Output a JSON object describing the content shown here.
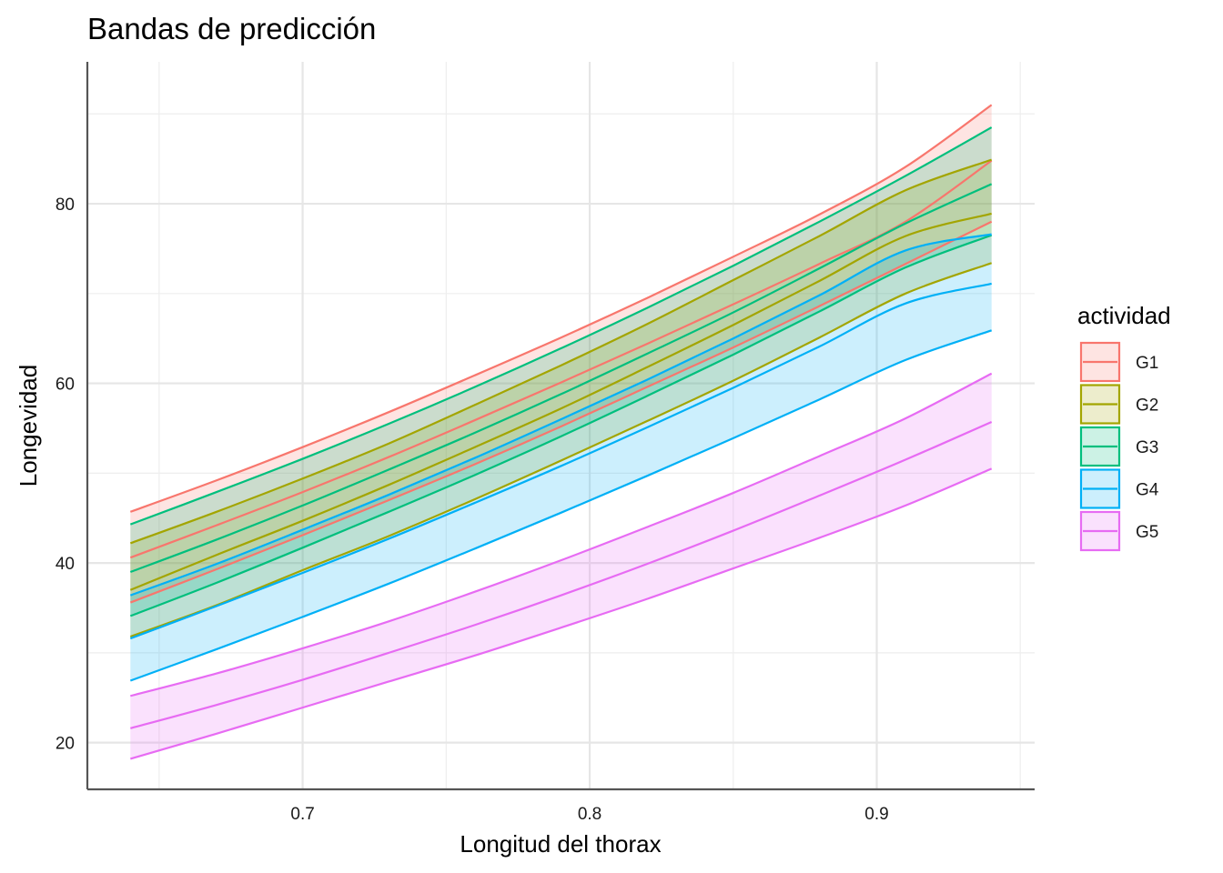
{
  "chart_data": {
    "type": "line",
    "title": "Bandas de predicción",
    "xlabel": "Longitud del thorax",
    "ylabel": "Longevidad",
    "xlim": [
      0.625,
      0.955
    ],
    "ylim": [
      14.8,
      95.8
    ],
    "x_ticks": [
      0.7,
      0.8,
      0.9
    ],
    "y_ticks": [
      20,
      40,
      60,
      80
    ],
    "x_minor": [
      0.65,
      0.75,
      0.85,
      0.95
    ],
    "y_minor": [
      30,
      50,
      70,
      90
    ],
    "grid": true,
    "legend_title": "actividad",
    "legend_position": "right",
    "x": [
      0.64,
      0.67,
      0.7,
      0.73,
      0.76,
      0.79,
      0.82,
      0.85,
      0.88,
      0.91,
      0.94
    ],
    "series": [
      {
        "name": "G1",
        "color": "#F8766D",
        "fit": [
          40.6,
          44.2,
          47.9,
          51.8,
          55.9,
          60.1,
          64.4,
          68.8,
          73.3,
          78.0,
          84.8
        ],
        "lower": [
          35.6,
          39.3,
          43.1,
          47.0,
          51.0,
          55.2,
          59.6,
          64.0,
          68.6,
          73.3,
          78.0
        ],
        "upper": [
          45.7,
          49.2,
          52.9,
          56.8,
          60.9,
          65.1,
          69.5,
          74.1,
          78.8,
          84.1,
          91.0
        ]
      },
      {
        "name": "G2",
        "color": "#A3A500",
        "fit": [
          37.0,
          40.9,
          44.7,
          48.7,
          52.9,
          57.2,
          61.8,
          66.5,
          71.4,
          76.4,
          78.9
        ],
        "lower": [
          31.8,
          35.3,
          39.2,
          43.0,
          47.1,
          51.4,
          55.8,
          60.3,
          65.1,
          70.0,
          73.4
        ],
        "upper": [
          42.2,
          45.7,
          49.4,
          53.3,
          57.6,
          62.0,
          66.6,
          71.5,
          76.4,
          81.5,
          84.9
        ]
      },
      {
        "name": "G3",
        "color": "#00BF7D",
        "fit": [
          39.0,
          42.6,
          46.4,
          50.4,
          54.5,
          58.8,
          63.3,
          67.9,
          72.8,
          77.8,
          82.2
        ],
        "lower": [
          34.1,
          37.8,
          41.7,
          45.7,
          49.8,
          54.1,
          58.6,
          63.2,
          68.0,
          72.9,
          76.5
        ],
        "upper": [
          44.3,
          47.9,
          51.6,
          55.5,
          59.6,
          63.9,
          68.4,
          73.1,
          78.0,
          83.1,
          88.5
        ]
      },
      {
        "name": "G4",
        "color": "#00B0F6",
        "fit": [
          31.6,
          35.2,
          38.9,
          42.7,
          46.7,
          50.8,
          55.1,
          59.5,
          64.1,
          68.9,
          71.1
        ],
        "lower": [
          26.9,
          30.4,
          34.0,
          37.7,
          41.6,
          45.6,
          49.7,
          53.9,
          58.2,
          62.6,
          65.9
        ],
        "upper": [
          36.4,
          39.9,
          43.7,
          47.6,
          51.7,
          56.0,
          60.4,
          65.0,
          69.8,
          74.8,
          76.6
        ]
      },
      {
        "name": "G5",
        "color": "#E76BF3",
        "fit": [
          21.6,
          24.2,
          27.0,
          30.0,
          33.1,
          36.4,
          39.9,
          43.6,
          47.5,
          51.5,
          55.7
        ],
        "lower": [
          18.2,
          21.0,
          23.9,
          26.8,
          29.7,
          32.8,
          36.0,
          39.4,
          42.8,
          46.4,
          50.5
        ],
        "upper": [
          25.2,
          27.7,
          30.5,
          33.5,
          36.8,
          40.3,
          44.0,
          47.8,
          51.9,
          56.1,
          61.1
        ]
      }
    ]
  }
}
